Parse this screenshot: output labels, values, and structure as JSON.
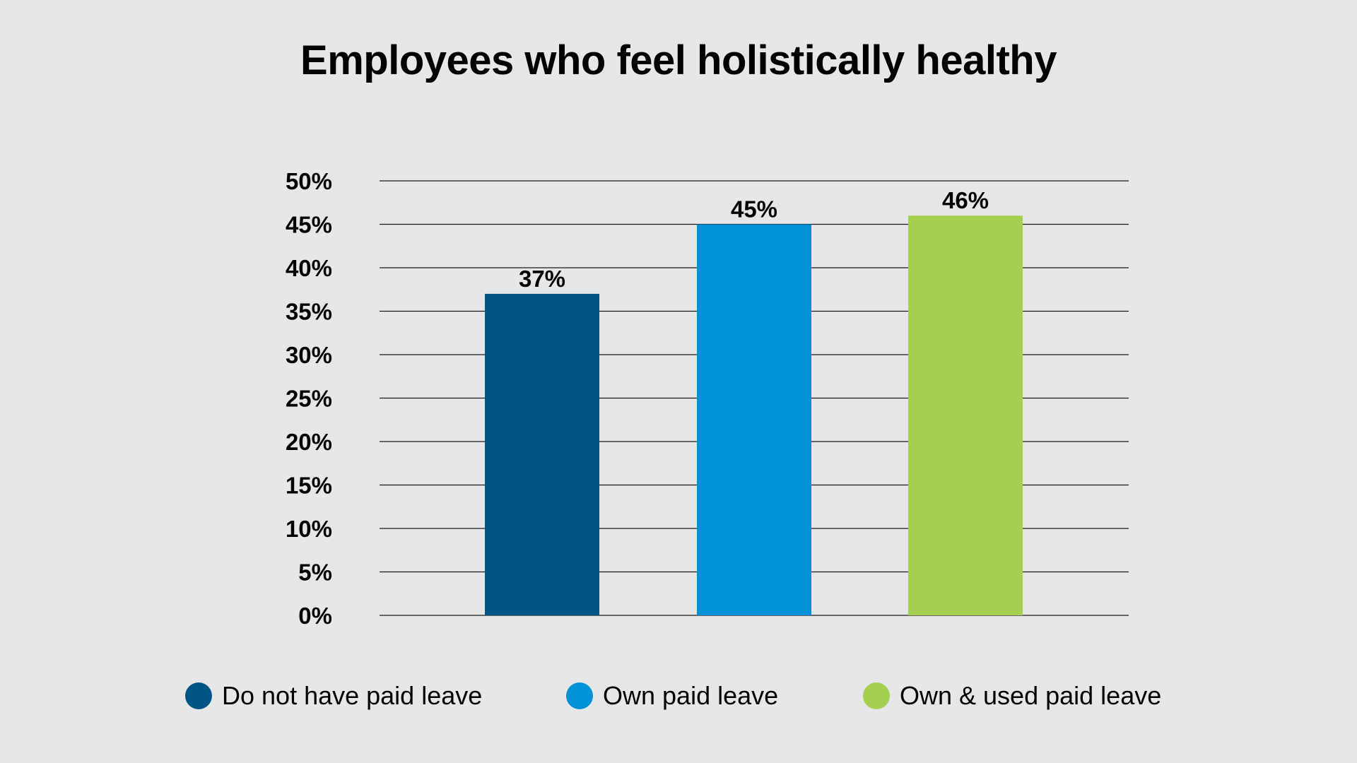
{
  "chart_data": {
    "type": "bar",
    "title": "Employees who feel holistically healthy",
    "categories": [
      "Do not have paid leave",
      "Own paid leave",
      "Own & used paid leave"
    ],
    "values": [
      37,
      45,
      46
    ],
    "value_labels": [
      "37%",
      "45%",
      "46%"
    ],
    "colors": [
      "#005587",
      "#0090d6",
      "#a4cf4f"
    ],
    "ylim": [
      0,
      50
    ],
    "y_ticks": [
      0,
      5,
      10,
      15,
      20,
      25,
      30,
      35,
      40,
      45,
      50
    ],
    "y_tick_labels": [
      "0%",
      "5%",
      "10%",
      "15%",
      "20%",
      "25%",
      "30%",
      "35%",
      "40%",
      "45%",
      "50%"
    ],
    "xlabel": "",
    "ylabel": "",
    "grid": true,
    "legend_position": "bottom"
  },
  "legend": {
    "items": [
      {
        "label": "Do not have paid leave",
        "color": "#005587"
      },
      {
        "label": "Own paid leave",
        "color": "#0090d6"
      },
      {
        "label": "Own & used paid leave",
        "color": "#a4cf4f"
      }
    ]
  }
}
